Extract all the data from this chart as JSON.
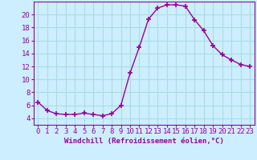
{
  "x": [
    0,
    1,
    2,
    3,
    4,
    5,
    6,
    7,
    8,
    9,
    10,
    11,
    12,
    13,
    14,
    15,
    16,
    17,
    18,
    19,
    20,
    21,
    22,
    23
  ],
  "y": [
    6.5,
    5.2,
    4.7,
    4.6,
    4.6,
    4.8,
    4.6,
    4.4,
    4.7,
    6.0,
    11.0,
    15.0,
    19.3,
    21.0,
    21.5,
    21.5,
    21.3,
    19.2,
    17.5,
    15.2,
    13.8,
    13.0,
    12.3,
    12.0
  ],
  "line_color": "#990099",
  "marker": "+",
  "marker_size": 4,
  "bg_color": "#cceeff",
  "grid_color": "#aadddd",
  "xlabel": "Windchill (Refroidissement éolien,°C)",
  "xlabel_fontsize": 6.5,
  "tick_fontsize": 6.5,
  "ylim": [
    3,
    22
  ],
  "xlim": [
    -0.5,
    23.5
  ],
  "yticks": [
    4,
    6,
    8,
    10,
    12,
    14,
    16,
    18,
    20
  ],
  "xticks": [
    0,
    1,
    2,
    3,
    4,
    5,
    6,
    7,
    8,
    9,
    10,
    11,
    12,
    13,
    14,
    15,
    16,
    17,
    18,
    19,
    20,
    21,
    22,
    23
  ]
}
